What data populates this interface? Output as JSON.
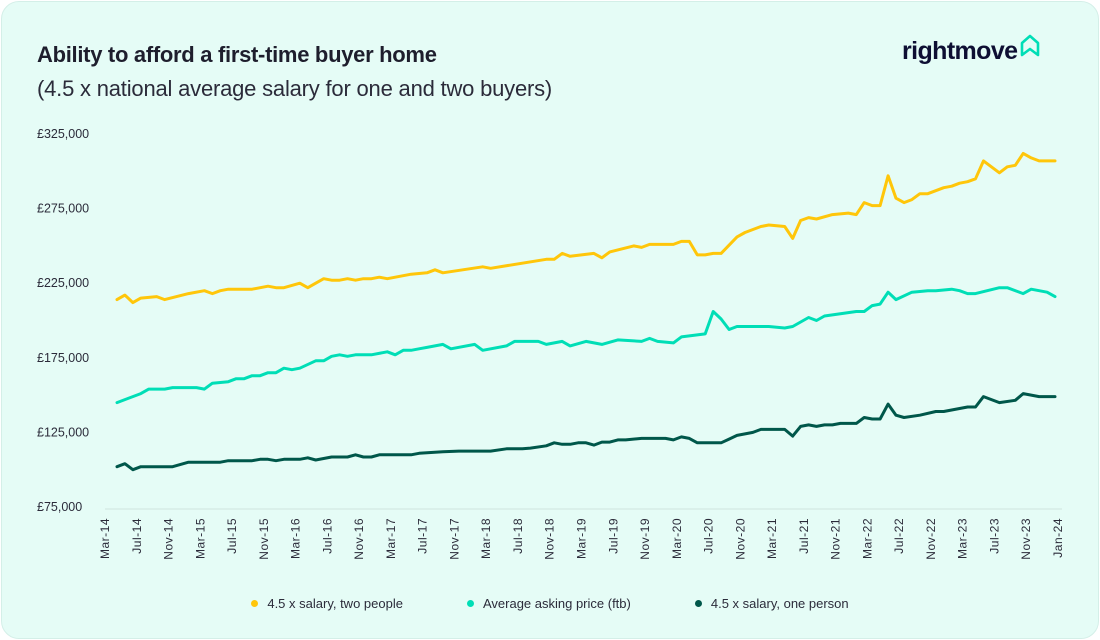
{
  "header": {
    "title": "Ability to afford a first-time buyer home",
    "subtitle": "(4.5 x national average salary for one and two buyers)",
    "logo_text": "rightmove",
    "logo_icon": "house-icon"
  },
  "colors": {
    "background": "#e5fcf6",
    "two_people": "#ffc60a",
    "asking_price": "#00deb6",
    "one_person": "#00574a",
    "logo_text": "#0e0f33",
    "logo_icon": "#00deb6"
  },
  "chart_data": {
    "type": "line",
    "title": "Ability to afford a first-time buyer home",
    "subtitle": "(4.5 x national average salary for one and two buyers)",
    "xlabel": "",
    "ylabel": "",
    "ylim": [
      75000,
      325000
    ],
    "yticks": [
      75000,
      125000,
      175000,
      225000,
      275000,
      325000
    ],
    "ytick_labels": [
      "£75,000",
      "£125,000",
      "£175,000",
      "£225,000",
      "£275,000",
      "£325,000"
    ],
    "xtick_labels": [
      "Mar-14",
      "Jul-14",
      "Nov-14",
      "Mar-15",
      "Jul-15",
      "Nov-15",
      "Mar-16",
      "Jul-16",
      "Nov-16",
      "Mar-17",
      "Jul-17",
      "Nov-17",
      "Mar-18",
      "Jul-18",
      "Nov-18",
      "Mar-19",
      "Jul-19",
      "Nov-19",
      "Mar-20",
      "Jul-20",
      "Nov-20",
      "Mar-21",
      "Jul-21",
      "Nov-21",
      "Mar-22",
      "Jul-22",
      "Nov-22",
      "Mar-23",
      "Jul-23",
      "Nov-23",
      "Jan-24"
    ],
    "xlim": [
      "2014-03",
      "2024-01"
    ],
    "grid": false,
    "legend_position": "bottom",
    "series": [
      {
        "name": "4.5 x salary, two people",
        "color": "#ffc60a",
        "points": [
          [
            "2014-03",
            214000
          ],
          [
            "2014-04",
            217000
          ],
          [
            "2014-05",
            212000
          ],
          [
            "2014-06",
            215000
          ],
          [
            "2014-08",
            216000
          ],
          [
            "2014-09",
            214000
          ],
          [
            "2014-12",
            218000
          ],
          [
            "2015-02",
            220000
          ],
          [
            "2015-03",
            218000
          ],
          [
            "2015-04",
            220000
          ],
          [
            "2015-05",
            221000
          ],
          [
            "2015-08",
            221000
          ],
          [
            "2015-10",
            223000
          ],
          [
            "2015-11",
            222000
          ],
          [
            "2015-12",
            222000
          ],
          [
            "2016-02",
            225000
          ],
          [
            "2016-03",
            222000
          ],
          [
            "2016-04",
            225000
          ],
          [
            "2016-05",
            228000
          ],
          [
            "2016-06",
            227000
          ],
          [
            "2016-07",
            227000
          ],
          [
            "2016-08",
            228000
          ],
          [
            "2016-09",
            227000
          ],
          [
            "2016-10",
            228000
          ],
          [
            "2016-11",
            228000
          ],
          [
            "2016-12",
            229000
          ],
          [
            "2017-01",
            228000
          ],
          [
            "2017-04",
            231000
          ],
          [
            "2017-06",
            232000
          ],
          [
            "2017-07",
            234000
          ],
          [
            "2017-08",
            232000
          ],
          [
            "2018-01",
            236000
          ],
          [
            "2018-02",
            235000
          ],
          [
            "2018-09",
            241000
          ],
          [
            "2018-10",
            241000
          ],
          [
            "2018-11",
            245000
          ],
          [
            "2018-12",
            243000
          ],
          [
            "2019-03",
            245000
          ],
          [
            "2019-04",
            242000
          ],
          [
            "2019-05",
            246000
          ],
          [
            "2019-08",
            250000
          ],
          [
            "2019-09",
            249000
          ],
          [
            "2019-10",
            251000
          ],
          [
            "2020-01",
            251000
          ],
          [
            "2020-02",
            253000
          ],
          [
            "2020-03",
            253000
          ],
          [
            "2020-04",
            244000
          ],
          [
            "2020-05",
            244000
          ],
          [
            "2020-06",
            245000
          ],
          [
            "2020-07",
            245000
          ],
          [
            "2020-09",
            256000
          ],
          [
            "2020-10",
            259000
          ],
          [
            "2020-12",
            263000
          ],
          [
            "2021-01",
            264000
          ],
          [
            "2021-03",
            263000
          ],
          [
            "2021-04",
            255000
          ],
          [
            "2021-05",
            267000
          ],
          [
            "2021-06",
            269000
          ],
          [
            "2021-07",
            268000
          ],
          [
            "2021-09",
            271000
          ],
          [
            "2021-11",
            272000
          ],
          [
            "2021-12",
            271000
          ],
          [
            "2022-01",
            279000
          ],
          [
            "2022-02",
            277000
          ],
          [
            "2022-03",
            277000
          ],
          [
            "2022-04",
            297000
          ],
          [
            "2022-05",
            282000
          ],
          [
            "2022-06",
            279000
          ],
          [
            "2022-07",
            281000
          ],
          [
            "2022-08",
            285000
          ],
          [
            "2022-09",
            285000
          ],
          [
            "2022-11",
            289000
          ],
          [
            "2022-12",
            290000
          ],
          [
            "2023-01",
            292000
          ],
          [
            "2023-02",
            293000
          ],
          [
            "2023-03",
            295000
          ],
          [
            "2023-04",
            307000
          ],
          [
            "2023-06",
            299000
          ],
          [
            "2023-07",
            303000
          ],
          [
            "2023-08",
            304000
          ],
          [
            "2023-09",
            312000
          ],
          [
            "2023-10",
            309000
          ],
          [
            "2023-11",
            307000
          ],
          [
            "2024-01",
            307000
          ]
        ]
      },
      {
        "name": "Average asking price (ftb)",
        "color": "#00deb6",
        "points": [
          [
            "2014-03",
            145000
          ],
          [
            "2014-06",
            151000
          ],
          [
            "2014-07",
            154000
          ],
          [
            "2014-09",
            154000
          ],
          [
            "2014-10",
            155000
          ],
          [
            "2015-01",
            155000
          ],
          [
            "2015-02",
            154000
          ],
          [
            "2015-03",
            158000
          ],
          [
            "2015-05",
            159000
          ],
          [
            "2015-06",
            161000
          ],
          [
            "2015-07",
            161000
          ],
          [
            "2015-08",
            163000
          ],
          [
            "2015-09",
            163000
          ],
          [
            "2015-10",
            165000
          ],
          [
            "2015-11",
            165000
          ],
          [
            "2015-12",
            168000
          ],
          [
            "2016-01",
            167000
          ],
          [
            "2016-02",
            168000
          ],
          [
            "2016-04",
            173000
          ],
          [
            "2016-05",
            173000
          ],
          [
            "2016-06",
            176000
          ],
          [
            "2016-07",
            177000
          ],
          [
            "2016-08",
            176000
          ],
          [
            "2016-09",
            177000
          ],
          [
            "2016-11",
            177000
          ],
          [
            "2017-01",
            179000
          ],
          [
            "2017-02",
            177000
          ],
          [
            "2017-03",
            180000
          ],
          [
            "2017-04",
            180000
          ],
          [
            "2017-05",
            181000
          ],
          [
            "2017-06",
            182000
          ],
          [
            "2017-08",
            184000
          ],
          [
            "2017-09",
            181000
          ],
          [
            "2017-12",
            184000
          ],
          [
            "2018-01",
            180000
          ],
          [
            "2018-04",
            183000
          ],
          [
            "2018-05",
            186000
          ],
          [
            "2018-08",
            186000
          ],
          [
            "2018-09",
            184000
          ],
          [
            "2018-11",
            186000
          ],
          [
            "2018-12",
            183000
          ],
          [
            "2019-02",
            186000
          ],
          [
            "2019-04",
            184000
          ],
          [
            "2019-06",
            187000
          ],
          [
            "2019-09",
            186000
          ],
          [
            "2019-10",
            188000
          ],
          [
            "2019-11",
            186000
          ],
          [
            "2020-01",
            185000
          ],
          [
            "2020-02",
            189000
          ],
          [
            "2020-05",
            191000
          ],
          [
            "2020-06",
            206000
          ],
          [
            "2020-07",
            201000
          ],
          [
            "2020-08",
            194000
          ],
          [
            "2020-09",
            196000
          ],
          [
            "2020-10",
            196000
          ],
          [
            "2021-01",
            196000
          ],
          [
            "2021-03",
            195000
          ],
          [
            "2021-04",
            196000
          ],
          [
            "2021-06",
            202000
          ],
          [
            "2021-07",
            200000
          ],
          [
            "2021-08",
            203000
          ],
          [
            "2021-12",
            206000
          ],
          [
            "2022-01",
            206000
          ],
          [
            "2022-02",
            210000
          ],
          [
            "2022-03",
            211000
          ],
          [
            "2022-04",
            219000
          ],
          [
            "2022-05",
            214000
          ],
          [
            "2022-07",
            219000
          ],
          [
            "2022-09",
            220000
          ],
          [
            "2022-10",
            220000
          ],
          [
            "2022-12",
            221000
          ],
          [
            "2023-01",
            220000
          ],
          [
            "2023-02",
            218000
          ],
          [
            "2023-03",
            218000
          ],
          [
            "2023-06",
            222000
          ],
          [
            "2023-07",
            222000
          ],
          [
            "2023-09",
            218000
          ],
          [
            "2023-10",
            221000
          ],
          [
            "2023-12",
            219000
          ],
          [
            "2024-01",
            216000
          ]
        ]
      },
      {
        "name": "4.5 x salary, one person",
        "color": "#00574a",
        "points": [
          [
            "2014-03",
            102000
          ],
          [
            "2014-04",
            104000
          ],
          [
            "2014-05",
            100000
          ],
          [
            "2014-06",
            102000
          ],
          [
            "2014-10",
            102000
          ],
          [
            "2014-12",
            105000
          ],
          [
            "2015-04",
            105000
          ],
          [
            "2015-05",
            106000
          ],
          [
            "2015-08",
            106000
          ],
          [
            "2015-09",
            107000
          ],
          [
            "2015-10",
            107000
          ],
          [
            "2015-11",
            106000
          ],
          [
            "2015-12",
            107000
          ],
          [
            "2016-02",
            107000
          ],
          [
            "2016-03",
            108000
          ],
          [
            "2016-04",
            106500
          ],
          [
            "2016-06",
            108500
          ],
          [
            "2016-08",
            108500
          ],
          [
            "2016-09",
            110000
          ],
          [
            "2016-10",
            108500
          ],
          [
            "2016-11",
            108500
          ],
          [
            "2016-12",
            110000
          ],
          [
            "2017-04",
            110000
          ],
          [
            "2017-05",
            111000
          ],
          [
            "2017-08",
            112000
          ],
          [
            "2017-10",
            112500
          ],
          [
            "2018-02",
            112500
          ],
          [
            "2018-04",
            114000
          ],
          [
            "2018-06",
            114000
          ],
          [
            "2018-07",
            114500
          ],
          [
            "2018-09",
            116000
          ],
          [
            "2018-10",
            118000
          ],
          [
            "2018-11",
            117000
          ],
          [
            "2018-12",
            117000
          ],
          [
            "2019-01",
            118000
          ],
          [
            "2019-02",
            118000
          ],
          [
            "2019-03",
            116500
          ],
          [
            "2019-04",
            118500
          ],
          [
            "2019-05",
            118500
          ],
          [
            "2019-06",
            120000
          ],
          [
            "2019-07",
            120000
          ],
          [
            "2019-09",
            121000
          ],
          [
            "2019-12",
            121000
          ],
          [
            "2020-01",
            120000
          ],
          [
            "2020-02",
            122000
          ],
          [
            "2020-03",
            121000
          ],
          [
            "2020-04",
            118000
          ],
          [
            "2020-07",
            118000
          ],
          [
            "2020-08",
            120500
          ],
          [
            "2020-09",
            123000
          ],
          [
            "2020-10",
            124000
          ],
          [
            "2020-11",
            125000
          ],
          [
            "2020-12",
            127000
          ],
          [
            "2021-03",
            127000
          ],
          [
            "2021-04",
            122500
          ],
          [
            "2021-05",
            129000
          ],
          [
            "2021-06",
            130000
          ],
          [
            "2021-07",
            129000
          ],
          [
            "2021-08",
            130000
          ],
          [
            "2021-09",
            130000
          ],
          [
            "2021-10",
            131000
          ],
          [
            "2021-12",
            131000
          ],
          [
            "2022-01",
            135000
          ],
          [
            "2022-02",
            134000
          ],
          [
            "2022-03",
            134000
          ],
          [
            "2022-04",
            144000
          ],
          [
            "2022-05",
            136500
          ],
          [
            "2022-06",
            135000
          ],
          [
            "2022-08",
            136500
          ],
          [
            "2022-10",
            139000
          ],
          [
            "2022-11",
            139000
          ],
          [
            "2023-01",
            141000
          ],
          [
            "2023-02",
            142000
          ],
          [
            "2023-03",
            142000
          ],
          [
            "2023-04",
            149000
          ],
          [
            "2023-06",
            145000
          ],
          [
            "2023-08",
            146500
          ],
          [
            "2023-09",
            151000
          ],
          [
            "2023-11",
            149000
          ],
          [
            "2024-01",
            149000
          ]
        ]
      }
    ]
  },
  "legend": {
    "items": [
      {
        "label": "4.5 x salary, two people",
        "color": "#ffc60a"
      },
      {
        "label": "Average asking price (ftb)",
        "color": "#00deb6"
      },
      {
        "label": "4.5 x salary, one person",
        "color": "#00574a"
      }
    ]
  }
}
